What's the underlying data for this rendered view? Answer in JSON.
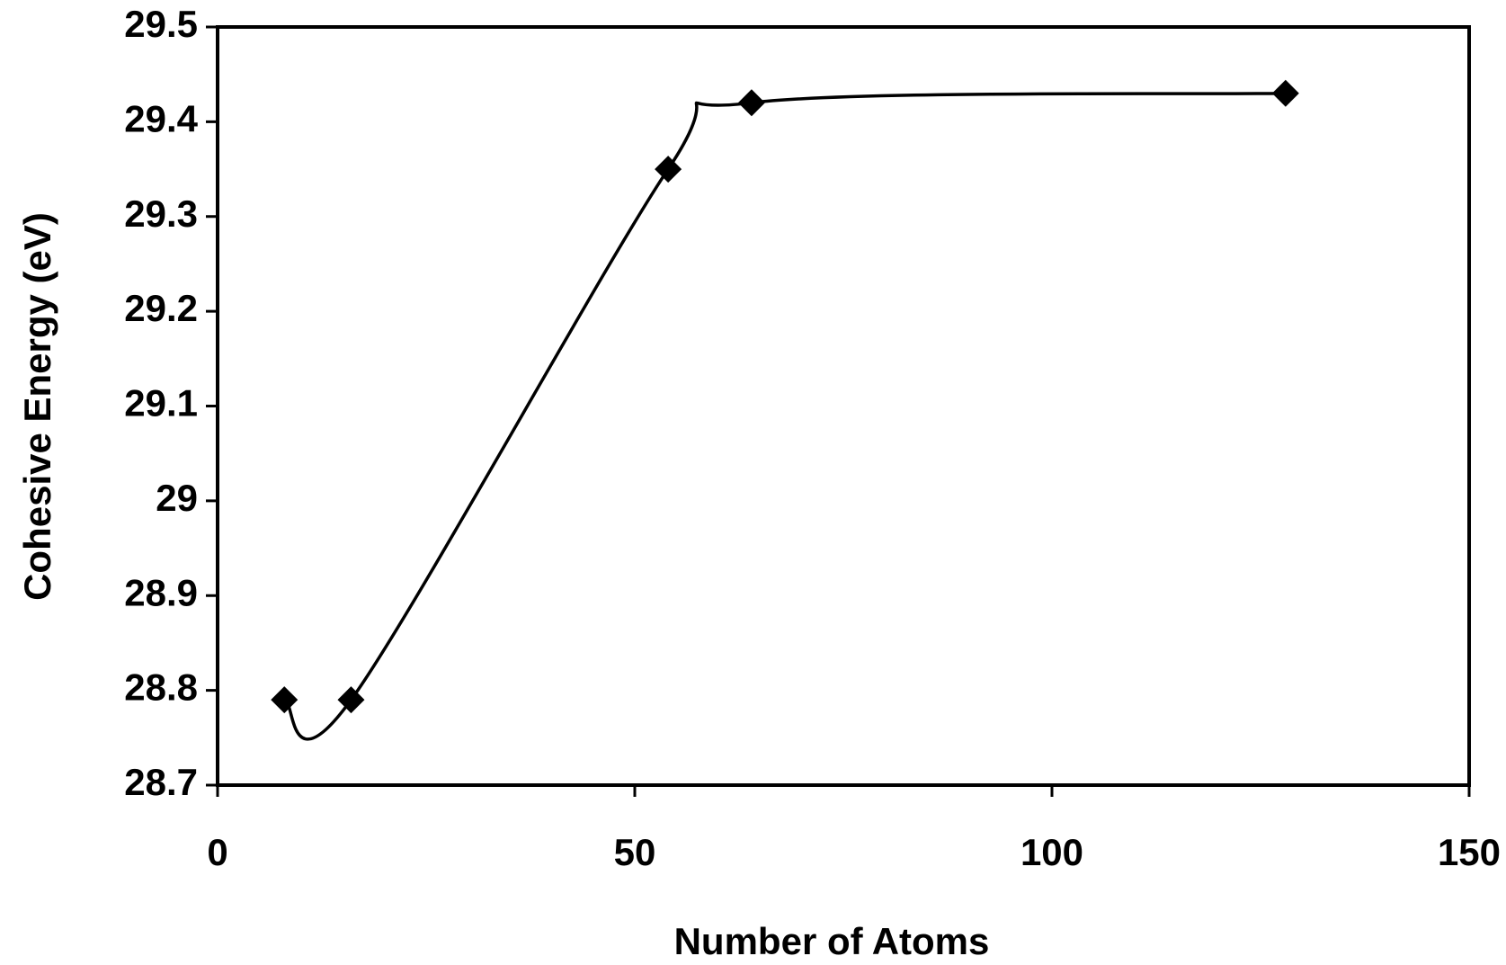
{
  "chart_data": {
    "type": "line",
    "x_label": "Number of Atoms",
    "y_label": "Cohesive Energy (eV)",
    "x": [
      8,
      16,
      54,
      64,
      128
    ],
    "series": [
      {
        "name": "Cohesive Energy",
        "color": "#000000",
        "values": [
          28.79,
          28.79,
          29.35,
          29.42,
          29.43
        ]
      }
    ],
    "xlim": [
      0,
      150
    ],
    "xticks": [
      0,
      50,
      100,
      150
    ],
    "ylim": [
      28.7,
      29.5
    ],
    "yticks": [
      28.7,
      28.8,
      28.9,
      29,
      29.1,
      29.2,
      29.3,
      29.4,
      29.5
    ],
    "grid": false,
    "marker": "diamond",
    "smooth": true
  }
}
